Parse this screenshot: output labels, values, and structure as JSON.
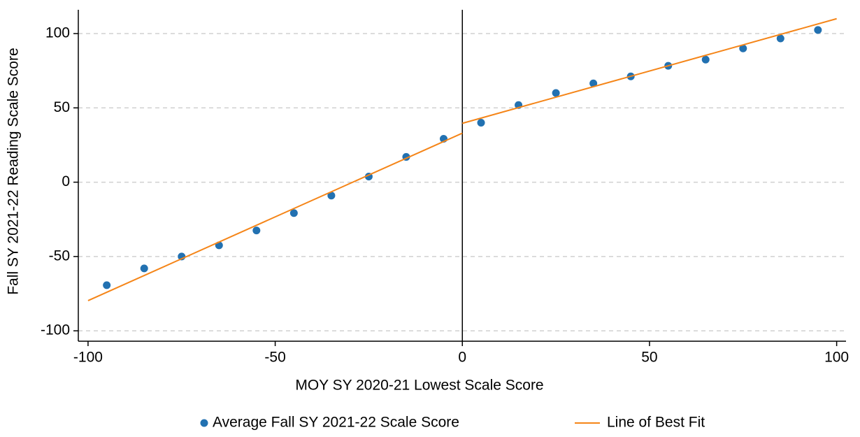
{
  "chart_data": {
    "type": "scatter",
    "xlabel": "MOY SY 2020-21 Lowest Scale Score",
    "ylabel": "Fall SY 2021-22 Reading Scale Score",
    "xlim": [
      -102.6,
      102.5
    ],
    "ylim": [
      -107,
      116
    ],
    "xticks": [
      -100,
      -50,
      0,
      50,
      100
    ],
    "yticks": [
      -100,
      -50,
      0,
      50,
      100
    ],
    "grid": true,
    "vline": 0,
    "legend": "bottom",
    "series": [
      {
        "name": "Average Fall SY 2021-22 Scale Score",
        "type": "scatter",
        "color": "#2271b1",
        "x": [
          -95,
          -85,
          -75,
          -65,
          -55,
          -45,
          -35,
          -25,
          -15,
          -5,
          5,
          15,
          25,
          35,
          45,
          55,
          65,
          75,
          85,
          95
        ],
        "values": [
          -69.3,
          -58,
          -50,
          -42.5,
          -32.5,
          -20.8,
          -9,
          3.8,
          17,
          29.2,
          40,
          51.9,
          60,
          66.5,
          71.2,
          78.3,
          82.5,
          90,
          96.7,
          102.4
        ]
      },
      {
        "name": "Line of Best Fit",
        "type": "line",
        "color": "#f58518",
        "x": [
          -100,
          0,
          0,
          0,
          100
        ],
        "values": [
          -79.7,
          33,
          null,
          39.6,
          110
        ]
      }
    ]
  }
}
